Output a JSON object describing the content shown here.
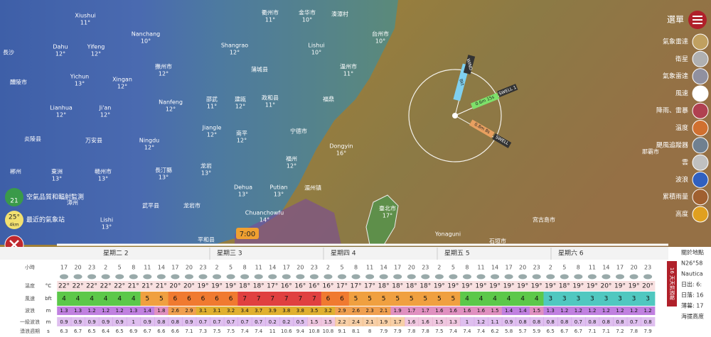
{
  "map": {
    "labels": [
      {
        "name": "Xiushui",
        "temp": "11°"
      },
      {
        "name": "衢州市",
        "temp": "11°"
      },
      {
        "name": "金华市",
        "temp": "10°"
      },
      {
        "name": "湊潭村",
        "temp": null
      },
      {
        "name": "台州市",
        "temp": "10°"
      },
      {
        "name": "Dahu",
        "temp": "12°"
      },
      {
        "name": "Yifeng",
        "temp": "12°"
      },
      {
        "name": "Nanchang",
        "temp": "10°"
      },
      {
        "name": "Shangrao",
        "temp": "12°"
      },
      {
        "name": "Lishui",
        "temp": "10°"
      },
      {
        "name": "長沙",
        "temp": null
      },
      {
        "name": "Yichun",
        "temp": "13°"
      },
      {
        "name": "Xingan",
        "temp": "12°"
      },
      {
        "name": "撫州市",
        "temp": "12°"
      },
      {
        "name": "溫州市",
        "temp": "11°"
      },
      {
        "name": "醴陵市",
        "temp": null
      },
      {
        "name": "蒲城县",
        "temp": null
      },
      {
        "name": "Lianhua",
        "temp": "12°"
      },
      {
        "name": "Ji'an",
        "temp": "12°"
      },
      {
        "name": "Nanfeng",
        "temp": "12°"
      },
      {
        "name": "邵武",
        "temp": "11°"
      },
      {
        "name": "建瓯",
        "temp": "12°"
      },
      {
        "name": "政和县",
        "temp": "11°"
      },
      {
        "name": "福鼎",
        "temp": null
      },
      {
        "name": "炎陵县",
        "temp": null
      },
      {
        "name": "万安县",
        "temp": null
      },
      {
        "name": "Ningdu",
        "temp": "12°"
      },
      {
        "name": "Jiangle",
        "temp": "12°"
      },
      {
        "name": "南平",
        "temp": "12°"
      },
      {
        "name": "宁德市",
        "temp": null
      },
      {
        "name": "Dongyin",
        "temp": "16°"
      },
      {
        "name": "福州",
        "temp": "12°"
      },
      {
        "name": "郴州",
        "temp": null
      },
      {
        "name": "東洲",
        "temp": "13°"
      },
      {
        "name": "赣州市",
        "temp": "13°"
      },
      {
        "name": "長汀縣",
        "temp": "13°"
      },
      {
        "name": "龙岩",
        "temp": "13°"
      },
      {
        "name": "Dehua",
        "temp": "13°"
      },
      {
        "name": "Putian",
        "temp": "13°"
      },
      {
        "name": "湄州镇",
        "temp": null
      },
      {
        "name": "漳州",
        "temp": null
      },
      {
        "name": "武平县",
        "temp": null
      },
      {
        "name": "龙岩市",
        "temp": null
      },
      {
        "name": "Chuanchowfu",
        "temp": "14°"
      },
      {
        "name": "臺北市",
        "temp": "17°"
      },
      {
        "name": "Lishi",
        "temp": "13°"
      },
      {
        "name": "平和县",
        "temp": null
      },
      {
        "name": "宮古島市",
        "temp": null
      },
      {
        "name": "Yonaguni",
        "temp": null
      },
      {
        "name": "石垣市",
        "temp": null
      },
      {
        "name": "那霸市",
        "temp": null
      }
    ],
    "picker": {
      "wind_value": "8kt",
      "wind_tag": "WIND",
      "swell1_value": "0.6m 15s",
      "swell1_tag": "SWELL 1",
      "swell_value": "0.8m 8s",
      "swell_tag": "SWELL"
    },
    "time_badge": "7:00"
  },
  "menu": {
    "title": "選單",
    "items": [
      "氣象雷達",
      "衛星",
      "氣象雷達",
      "風速",
      "降雨、雷暴",
      "溫度",
      "颶風追蹤器",
      "雲",
      "波浪",
      "累積雨量",
      "高度"
    ]
  },
  "left_widgets": {
    "air_value": "21",
    "air_label": "空氣品質和輻射監測",
    "station_temp": "25°",
    "station_dist": "4km",
    "station_label": "最近的氣象站"
  },
  "forecast": {
    "days": [
      "星期二 2",
      "星期三 3",
      "星期四 4",
      "星期五 5",
      "星期六 6"
    ],
    "row_labels": [
      {
        "name": "小時",
        "unit": null
      },
      {
        "name": "溫度",
        "unit": "°C"
      },
      {
        "name": "風速",
        "unit": "bft"
      },
      {
        "name": "波浪",
        "unit": "m"
      },
      {
        "name": "一級波浪",
        "unit": "m"
      },
      {
        "name": "湧浪週期",
        "unit": "s"
      }
    ],
    "hours": [
      17,
      20,
      23,
      2,
      5,
      8,
      11,
      14,
      17,
      20,
      23,
      2,
      5,
      8,
      11,
      14,
      17,
      20,
      23,
      2,
      5,
      8,
      11,
      14,
      17,
      20,
      23,
      2,
      5,
      8,
      11,
      14,
      17,
      20,
      23,
      2,
      5,
      8,
      11,
      14,
      17,
      20,
      23
    ],
    "temps": [
      "22°",
      "22°",
      "22°",
      "22°",
      "22°",
      "21°",
      "21°",
      "21°",
      "20°",
      "20°",
      "19°",
      "19°",
      "19°",
      "18°",
      "18°",
      "17°",
      "16°",
      "16°",
      "16°",
      "16°",
      "17°",
      "17°",
      "17°",
      "18°",
      "18°",
      "18°",
      "18°",
      "19°",
      "19°",
      "19°",
      "19°",
      "19°",
      "19°",
      "19°",
      "19°",
      "19°",
      "18°",
      "19°",
      "19°",
      "20°",
      "19°",
      "19°",
      "20°"
    ],
    "wind": [
      4,
      4,
      4,
      4,
      4,
      4,
      5,
      5,
      6,
      6,
      6,
      6,
      6,
      7,
      7,
      7,
      7,
      7,
      7,
      6,
      6,
      5,
      5,
      5,
      5,
      5,
      5,
      5,
      5,
      4,
      4,
      4,
      4,
      4,
      4,
      3,
      3,
      3,
      3,
      3,
      3,
      3,
      3
    ],
    "waves": [
      1.3,
      1.3,
      1.2,
      1.2,
      1.2,
      1.3,
      1.4,
      1.8,
      2.6,
      2.9,
      3.1,
      3.1,
      3.2,
      3.4,
      3.7,
      3.9,
      3.8,
      3.8,
      3.5,
      3.2,
      2.9,
      2.6,
      2.3,
      2.1,
      1.9,
      1.7,
      1.7,
      1.6,
      1.6,
      1.6,
      1.6,
      1.5,
      1.4,
      1.4,
      1.5,
      1.3,
      1.2,
      1.2,
      1.2,
      1.2,
      1.2,
      1.2,
      1.2
    ],
    "swell": [
      0.9,
      0.9,
      0.9,
      0.9,
      0.9,
      1,
      0.9,
      0.8,
      0.8,
      0.9,
      0.7,
      0.7,
      0.7,
      0.7,
      0.7,
      0.2,
      0.2,
      0.5,
      1.5,
      1.5,
      2.2,
      2.4,
      2.1,
      1.9,
      1.7,
      1.6,
      1.6,
      1.5,
      1.3,
      1,
      1.2,
      1.1,
      0.9,
      0.8,
      0.8,
      0.8,
      0.8,
      0.7,
      0.8,
      0.8,
      0.8,
      0.7,
      0.8
    ],
    "period": [
      6.3,
      6.7,
      6.5,
      6.4,
      6.5,
      6.9,
      6.7,
      6.6,
      6.6,
      7.1,
      7.3,
      7.5,
      7.5,
      7.4,
      7.4,
      11,
      10.6,
      9.4,
      10.8,
      10.8,
      9.1,
      8.1,
      8,
      7.9,
      7.9,
      7.8,
      7.8,
      7.5,
      7.4,
      7.4,
      7.4,
      6.2,
      5.8,
      5.7,
      5.9,
      6.5,
      6.7,
      6.7,
      7.1,
      7.1,
      7.2,
      7.8,
      7.9
    ],
    "tab_label": "16 天天氣預報"
  },
  "side_panel": [
    "關於地點",
    "N26°58",
    "Nautica",
    "日出: 6:",
    "日落: 16",
    "薄暮: 17",
    "海拔高度"
  ]
}
